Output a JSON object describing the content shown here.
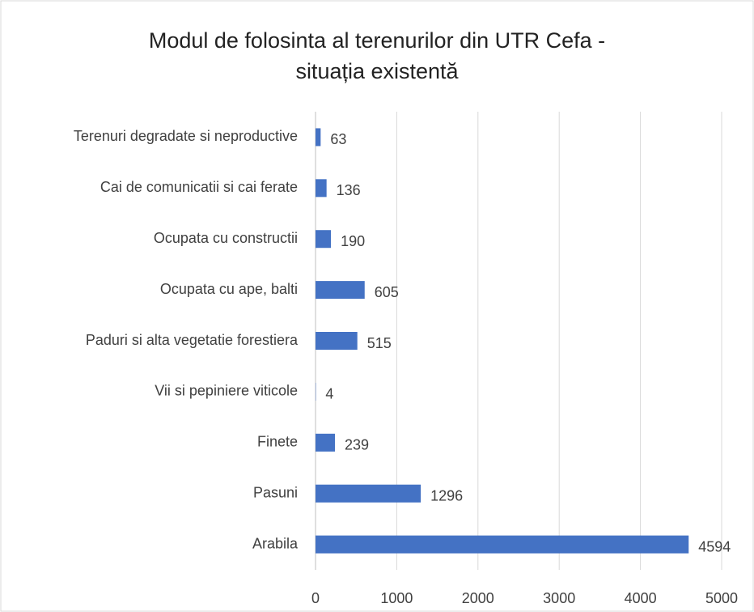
{
  "chart_data": {
    "type": "bar",
    "orientation": "horizontal",
    "title": [
      "Modul de folosinta al terenurilor  din UTR Cefa -",
      "situația existentă"
    ],
    "categories": [
      "Terenuri degradate si neproductive",
      "Cai de comunicatii si cai ferate",
      "Ocupata cu constructii",
      "Ocupata cu ape, balti",
      "Paduri si alta vegetatie forestiera",
      "Vii si pepiniere viticole",
      "Finete",
      "Pasuni",
      "Arabila"
    ],
    "values": [
      63,
      136,
      190,
      605,
      515,
      4,
      239,
      1296,
      4594
    ],
    "color": "#4472c4",
    "xlim": [
      0,
      5000
    ],
    "xticks": [
      0,
      1000,
      2000,
      3000,
      4000,
      5000
    ],
    "grid": true
  }
}
